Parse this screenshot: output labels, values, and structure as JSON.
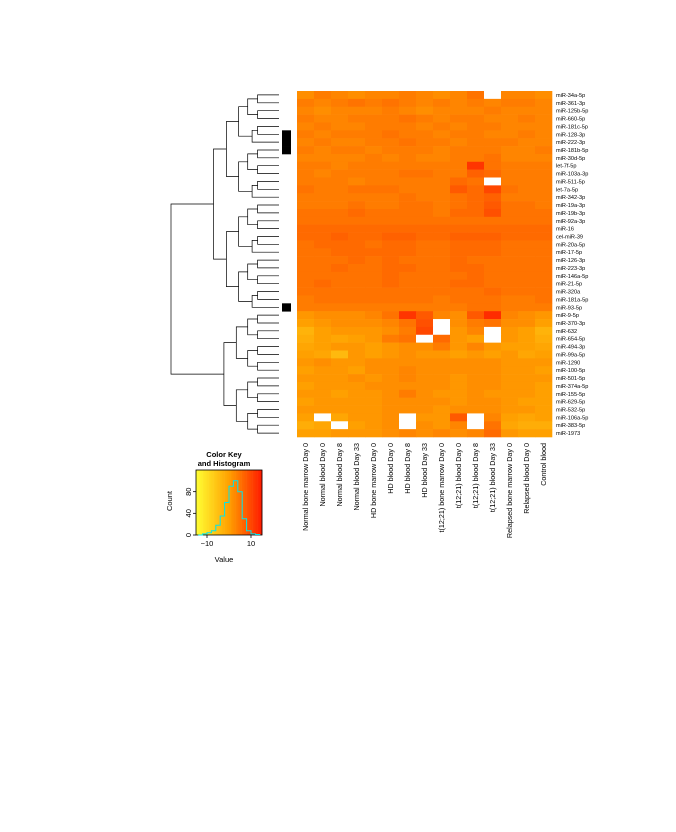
{
  "chart_data": {
    "type": "heatmap",
    "rows": [
      "miR-34a-5p",
      "miR-361-3p",
      "miR-125b-5p",
      "miR-660-5p",
      "miR-181c-5p",
      "miR-128-3p",
      "miR-222-3p",
      "miR-181b-5p",
      "miR-30d-5p",
      "let-7f-5p",
      "miR-103a-3p",
      "miR-511-5p",
      "let-7a-5p",
      "miR-342-3p",
      "miR-19a-3p",
      "miR-19b-3p",
      "miR-92a-3p",
      "miR-16",
      "cel-miR-39",
      "miR-20a-5p",
      "miR-17-5p",
      "miR-126-3p",
      "miR-223-3p",
      "miR-146a-5p",
      "miR-21-5p",
      "miR-320a",
      "miR-181a-5p",
      "miR-93-5p",
      "miR-9-5p",
      "miR-370-3p",
      "miR-632",
      "miR-654-5p",
      "miR-494-3p",
      "miR-99a-5p",
      "miR-1290",
      "miR-100-5p",
      "miR-501-5p",
      "miR-374a-5p",
      "miR-155-5p",
      "miR-629-5p",
      "miR-532-5p",
      "miR-106a-5p",
      "miR-383-5p",
      "miR-1973"
    ],
    "columns": [
      "Normal bone marrow Day 0",
      "Normal blood Day 0",
      "Normal blood Day 8",
      "Normal blood Day 33",
      "HD bone marrow Day 0",
      "HD blood Day 0",
      "HD blood Day 8",
      "HD blood Day 33",
      "t(12;21) bone marrow Day 0",
      "t(12;21) blood Day 0",
      "t(12;21) blood Day 8",
      "t(12;21) blood Day 33",
      "Relapsed bone marrow Day 0",
      "Relapsed blood Day 0",
      "Control blood"
    ],
    "values": [
      [
        2,
        4,
        3,
        2,
        3,
        3,
        4,
        3,
        2,
        3,
        5,
        null,
        3,
        3,
        2
      ],
      [
        4,
        3,
        4,
        5,
        4,
        5,
        4,
        3,
        4,
        3,
        4,
        3,
        4,
        4,
        3
      ],
      [
        3,
        2,
        3,
        3,
        3,
        4,
        3,
        2,
        3,
        3,
        3,
        4,
        3,
        3,
        3
      ],
      [
        4,
        3,
        3,
        4,
        4,
        4,
        5,
        4,
        3,
        4,
        4,
        3,
        3,
        4,
        3
      ],
      [
        3,
        4,
        3,
        3,
        4,
        4,
        4,
        3,
        4,
        3,
        4,
        4,
        3,
        3,
        3
      ],
      [
        4,
        3,
        4,
        4,
        4,
        5,
        4,
        4,
        3,
        4,
        4,
        3,
        3,
        4,
        3
      ],
      [
        3,
        4,
        3,
        3,
        4,
        4,
        5,
        4,
        4,
        3,
        4,
        4,
        4,
        3,
        3
      ],
      [
        4,
        3,
        4,
        4,
        3,
        4,
        4,
        4,
        3,
        4,
        4,
        4,
        3,
        3,
        4
      ],
      [
        3,
        3,
        3,
        3,
        4,
        3,
        4,
        3,
        3,
        4,
        4,
        5,
        3,
        3,
        3
      ],
      [
        4,
        4,
        3,
        4,
        4,
        4,
        4,
        4,
        4,
        4,
        12,
        5,
        4,
        4,
        4
      ],
      [
        4,
        3,
        4,
        4,
        4,
        4,
        5,
        5,
        4,
        4,
        7,
        6,
        4,
        4,
        4
      ],
      [
        4,
        4,
        4,
        3,
        4,
        4,
        4,
        4,
        4,
        6,
        5,
        null,
        4,
        4,
        4
      ],
      [
        5,
        4,
        4,
        5,
        5,
        5,
        4,
        4,
        4,
        8,
        6,
        10,
        5,
        4,
        4
      ],
      [
        4,
        4,
        4,
        4,
        4,
        4,
        5,
        4,
        4,
        5,
        6,
        7,
        4,
        4,
        4
      ],
      [
        4,
        4,
        4,
        5,
        4,
        4,
        5,
        5,
        4,
        5,
        6,
        8,
        5,
        5,
        4
      ],
      [
        5,
        5,
        5,
        6,
        5,
        5,
        5,
        5,
        4,
        6,
        6,
        9,
        5,
        5,
        5
      ],
      [
        5,
        5,
        5,
        5,
        5,
        5,
        5,
        5,
        5,
        5,
        5,
        5,
        5,
        5,
        5
      ],
      [
        6,
        6,
        6,
        6,
        6,
        6,
        6,
        6,
        6,
        6,
        6,
        6,
        6,
        6,
        6
      ],
      [
        6,
        6,
        7,
        6,
        6,
        7,
        7,
        6,
        6,
        7,
        7,
        7,
        6,
        6,
        6
      ],
      [
        5,
        6,
        6,
        6,
        5,
        6,
        6,
        5,
        5,
        6,
        6,
        6,
        5,
        5,
        5
      ],
      [
        5,
        5,
        6,
        6,
        6,
        6,
        6,
        5,
        5,
        6,
        6,
        6,
        5,
        5,
        5
      ],
      [
        5,
        5,
        5,
        6,
        5,
        6,
        5,
        5,
        5,
        6,
        5,
        5,
        5,
        5,
        5
      ],
      [
        5,
        5,
        6,
        5,
        5,
        6,
        6,
        5,
        5,
        6,
        6,
        5,
        5,
        5,
        5
      ],
      [
        5,
        5,
        5,
        5,
        5,
        6,
        5,
        5,
        5,
        5,
        6,
        5,
        5,
        5,
        5
      ],
      [
        5,
        6,
        5,
        5,
        5,
        6,
        5,
        5,
        5,
        6,
        6,
        5,
        5,
        5,
        5
      ],
      [
        5,
        5,
        5,
        5,
        5,
        5,
        5,
        5,
        5,
        5,
        5,
        6,
        5,
        5,
        5
      ],
      [
        4,
        5,
        5,
        5,
        5,
        5,
        5,
        5,
        4,
        5,
        5,
        5,
        4,
        4,
        5
      ],
      [
        4,
        4,
        4,
        4,
        4,
        4,
        4,
        4,
        4,
        4,
        5,
        5,
        4,
        4,
        4
      ],
      [
        1,
        2,
        2,
        2,
        3,
        5,
        12,
        8,
        3,
        2,
        8,
        13,
        3,
        2,
        1
      ],
      [
        0,
        1,
        2,
        2,
        2,
        3,
        5,
        9,
        null,
        2,
        4,
        5,
        2,
        2,
        0
      ],
      [
        -3,
        0,
        1,
        1,
        1,
        2,
        4,
        10,
        null,
        1,
        3,
        null,
        1,
        0,
        -3
      ],
      [
        -2,
        0,
        -1,
        0,
        1,
        4,
        5,
        null,
        6,
        1,
        0,
        null,
        1,
        0,
        -2
      ],
      [
        -1,
        0,
        1,
        1,
        0,
        1,
        2,
        2,
        4,
        1,
        3,
        1,
        0,
        0,
        -1
      ],
      [
        0,
        -1,
        -4,
        1,
        0,
        1,
        2,
        1,
        1,
        0,
        1,
        0,
        1,
        -1,
        0
      ],
      [
        1,
        2,
        1,
        1,
        2,
        2,
        2,
        2,
        2,
        2,
        2,
        2,
        1,
        1,
        1
      ],
      [
        0,
        1,
        1,
        0,
        2,
        2,
        3,
        2,
        2,
        2,
        2,
        2,
        1,
        1,
        0
      ],
      [
        1,
        1,
        1,
        2,
        1,
        2,
        3,
        2,
        2,
        1,
        2,
        2,
        1,
        1,
        1
      ],
      [
        0,
        1,
        1,
        1,
        2,
        2,
        2,
        2,
        2,
        1,
        2,
        2,
        1,
        1,
        0
      ],
      [
        1,
        1,
        0,
        1,
        1,
        2,
        4,
        2,
        1,
        1,
        2,
        1,
        1,
        1,
        0
      ],
      [
        0,
        1,
        1,
        1,
        1,
        2,
        2,
        2,
        2,
        1,
        2,
        2,
        1,
        0,
        0
      ],
      [
        1,
        1,
        1,
        1,
        1,
        2,
        2,
        2,
        1,
        2,
        2,
        2,
        1,
        1,
        0
      ],
      [
        0,
        null,
        -1,
        1,
        1,
        2,
        null,
        1,
        1,
        8,
        null,
        3,
        0,
        -1,
        0
      ],
      [
        -2,
        -1,
        null,
        0,
        1,
        2,
        null,
        2,
        1,
        3,
        null,
        5,
        -1,
        -2,
        -2
      ],
      [
        0,
        0,
        1,
        1,
        1,
        2,
        3,
        2,
        3,
        2,
        3,
        6,
        1,
        0,
        0
      ]
    ],
    "color_scale": [
      "#ffff33",
      "#ffa000",
      "#ff1a00"
    ],
    "missing_color": "#ffffff",
    "value_range": [
      -15,
      15
    ],
    "row_side_colors": {
      "color": "#000000",
      "marked_rows": [
        "miR-128-3p",
        "miR-222-3p",
        "miR-181b-5p",
        "miR-93-5p"
      ]
    },
    "color_key": {
      "title_line1": "Color Key",
      "title_line2": "and Histogram",
      "xlabel": "Value",
      "ylabel": "Count",
      "xticks": [
        -10,
        10
      ],
      "yticks": [
        0,
        40,
        80
      ],
      "xlim": [
        -15,
        15
      ],
      "ylim": [
        0,
        120
      ],
      "histogram_color": "#00e5ee",
      "histogram": {
        "breaks": [
          -14,
          -12,
          -10,
          -8,
          -6,
          -4,
          -2,
          0,
          2,
          4,
          6,
          8,
          10,
          12,
          14
        ],
        "counts": [
          0,
          2,
          4,
          8,
          18,
          35,
          60,
          90,
          100,
          80,
          30,
          8,
          2,
          1
        ]
      }
    }
  }
}
